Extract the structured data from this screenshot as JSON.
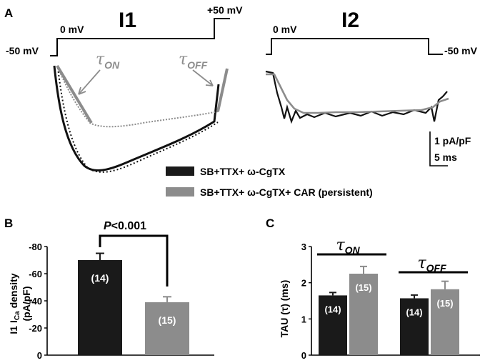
{
  "panel_a": {
    "letter": "A",
    "i1": {
      "title": "I1",
      "v_hold": "-50 mV",
      "v_step": "0 mV",
      "v_post": "+50 mV",
      "tau_on_sym": "τ",
      "tau_on_sub": "ON",
      "tau_off_sym": "τ",
      "tau_off_sub": "OFF"
    },
    "i2": {
      "title": "I2",
      "v_step": "0 mV",
      "v_end": "-50 mV"
    },
    "scale": {
      "current": "1 pA/pF",
      "time": "5 ms"
    },
    "legend": [
      {
        "label": "SB+TTX+ ω-CgTX",
        "color": "#1a1a1a",
        "text_color": "#1a1a1a"
      },
      {
        "label": "SB+TTX+ ω-CgTX+ CAR (persistent)",
        "color": "#8c8c8c",
        "text_color": "#8c8c8c"
      }
    ]
  },
  "panel_b": {
    "letter": "B",
    "ylabel_line1_pre": "I1 I",
    "ylabel_sub": "Ca",
    "ylabel_line1_post": " density",
    "ylabel_line2": "(pA/pF)",
    "sig_p": "P",
    "sig_rest": "<0.001",
    "chart_data": {
      "type": "bar",
      "ylim": [
        0,
        -80
      ],
      "yticks": [
        "0",
        "-20",
        "-40",
        "-60",
        "-80"
      ],
      "categories": [
        "SB+TTX+ ω-CgTX",
        "SB+TTX+ ω-CgTX+ CAR (persistent)"
      ],
      "values": [
        -70,
        -39
      ],
      "errors": [
        5,
        4
      ],
      "n_labels": [
        "(14)",
        "(15)"
      ],
      "colors": [
        "#1a1a1a",
        "#8c8c8c"
      ]
    }
  },
  "panel_c": {
    "letter": "C",
    "ylabel": "TAU (τ) (ms)",
    "group_labels": [
      {
        "sym": "τ",
        "sub": "ON"
      },
      {
        "sym": "τ",
        "sub": "OFF"
      }
    ],
    "chart_data": {
      "type": "bar",
      "ylim": [
        0,
        3
      ],
      "yticks": [
        "0",
        "1",
        "2",
        "3"
      ],
      "groups": [
        "τON",
        "τOFF"
      ],
      "series": [
        {
          "name": "SB+TTX+ ω-CgTX",
          "values": [
            1.65,
            1.57
          ],
          "errors": [
            0.08,
            0.09
          ],
          "n": [
            "(14)",
            "(14)"
          ],
          "color": "#1a1a1a"
        },
        {
          "name": "SB+TTX+ ω-CgTX+ CAR (persistent)",
          "values": [
            2.25,
            1.82
          ],
          "errors": [
            0.2,
            0.22
          ],
          "n": [
            "(15)",
            "(15)"
          ],
          "color": "#8c8c8c"
        }
      ]
    }
  }
}
